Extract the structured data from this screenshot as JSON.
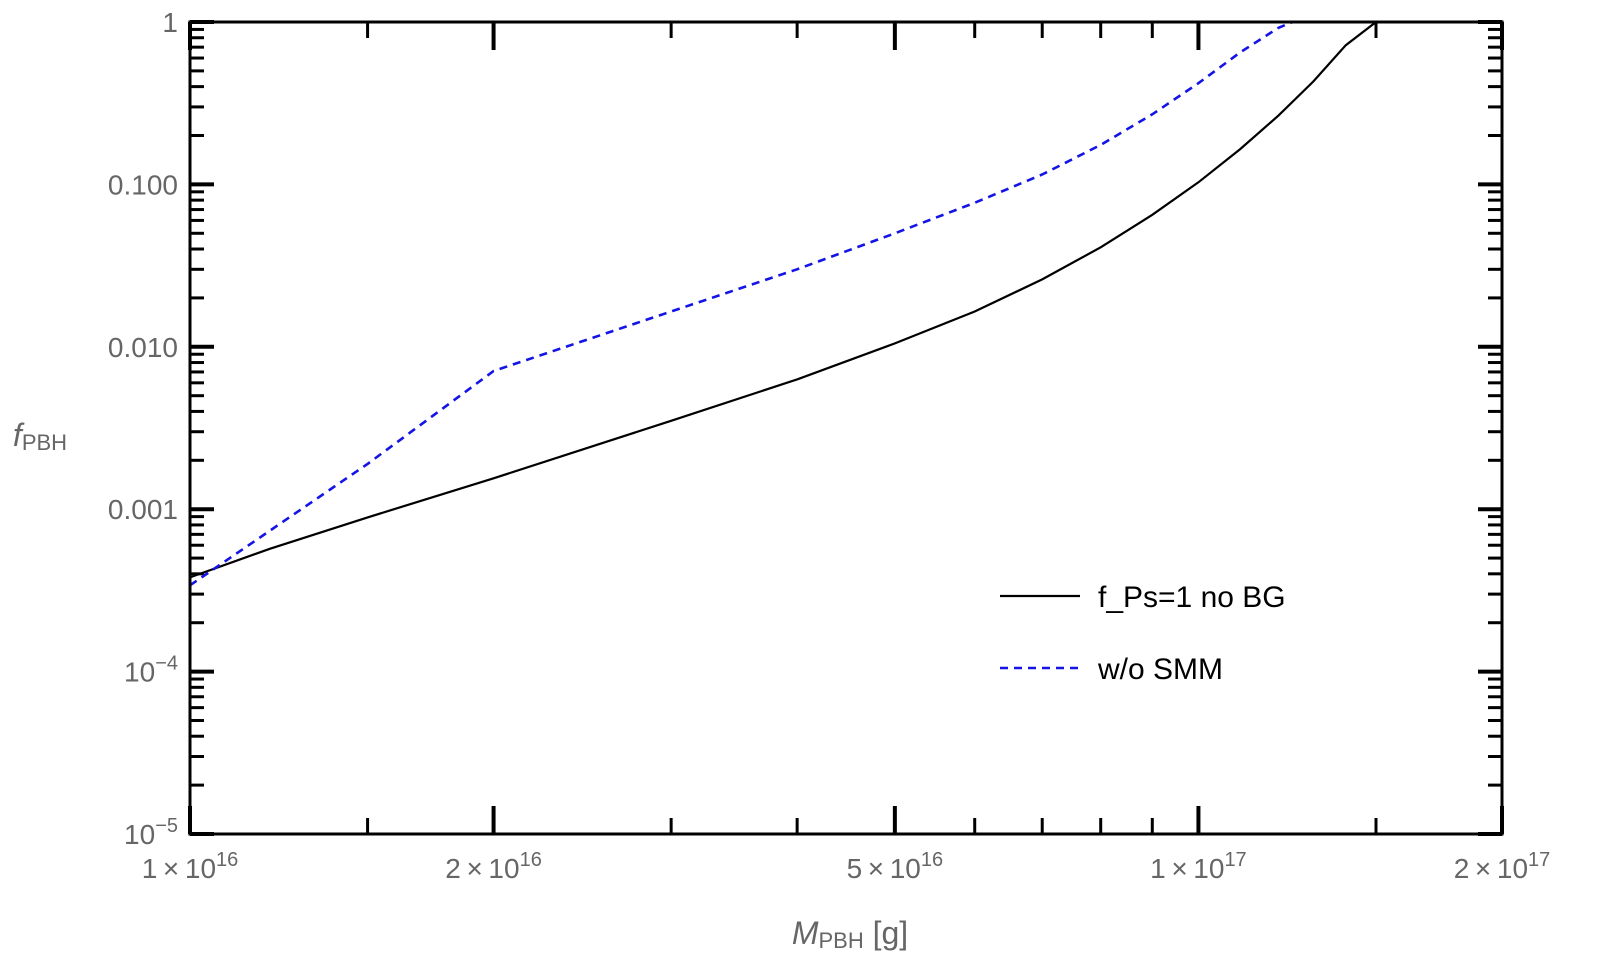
{
  "chart_data": {
    "type": "line",
    "x_scale": "log",
    "y_scale": "log",
    "xlim": [
      1e+16,
      2e+17
    ],
    "ylim": [
      1e-05,
      1
    ],
    "grid": false,
    "legend_position": "right-center",
    "xlabel": {
      "main": "M",
      "sub": "PBH",
      "suffix": " [g]"
    },
    "ylabel": {
      "main": "f",
      "sub": "PBH"
    },
    "x_ticks": [
      {
        "value": 1e+16,
        "mant": "1",
        "exp": "16"
      },
      {
        "value": 2e+16,
        "mant": "2",
        "exp": "16"
      },
      {
        "value": 5e+16,
        "mant": "5",
        "exp": "16"
      },
      {
        "value": 1e+17,
        "mant": "1",
        "exp": "17"
      },
      {
        "value": 2e+17,
        "mant": "2",
        "exp": "17"
      }
    ],
    "y_ticks": [
      {
        "value": 1,
        "label": "1"
      },
      {
        "value": 0.1,
        "label": "0.100"
      },
      {
        "value": 0.01,
        "label": "0.010"
      },
      {
        "value": 0.001,
        "label": "0.001"
      },
      {
        "value": 0.0001,
        "base": "10",
        "exp": "−4"
      },
      {
        "value": 1e-05,
        "base": "10",
        "exp": "−5"
      }
    ],
    "series": [
      {
        "name": "f_Ps=1 no BG",
        "color": "#000000",
        "dash": "solid",
        "x": [
          1e+16,
          1.2e+16,
          1.5e+16,
          2e+16,
          3e+16,
          4e+16,
          5e+16,
          6e+16,
          7e+16,
          8e+16,
          9e+16,
          1e+17,
          1.1e+17,
          1.2e+17,
          1.3e+17,
          1.4e+17,
          1.5e+17
        ],
        "y": [
          0.00038,
          0.00057,
          0.00089,
          0.00155,
          0.0035,
          0.0063,
          0.0105,
          0.0165,
          0.026,
          0.041,
          0.065,
          0.103,
          0.165,
          0.265,
          0.43,
          0.72,
          1.0
        ]
      },
      {
        "name": "w/o SMM",
        "color": "#1414e6",
        "dash": "dashed",
        "x": [
          1e+16,
          1.5e+16,
          2e+16,
          3e+16,
          4e+16,
          5e+16,
          6e+16,
          7e+16,
          8e+16,
          9e+16,
          1e+17,
          1.1e+17,
          1.2e+17,
          1.24e+17
        ],
        "y": [
          0.00034,
          0.0019,
          0.0071,
          0.0165,
          0.03,
          0.05,
          0.077,
          0.115,
          0.175,
          0.27,
          0.42,
          0.65,
          0.92,
          1.0
        ]
      }
    ]
  }
}
